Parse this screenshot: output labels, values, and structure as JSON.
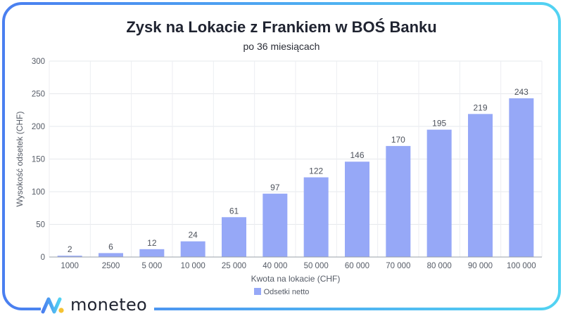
{
  "colors": {
    "bar": "#96a8f7",
    "frame_start": "#4a7ff0",
    "frame_end": "#52d3f2"
  },
  "brand": {
    "name": "moneteo",
    "logo": "moneteo-logo-icon"
  },
  "chart_data": {
    "type": "bar",
    "title": "Zysk na Lokacie z Frankiem w BOŚ Banku",
    "subtitle": "po 36 miesiącach",
    "xlabel": "Kwota na lokacie (CHF)",
    "ylabel": "Wysokość odsetek (CHF)",
    "ylim": [
      0,
      300
    ],
    "yticks": [
      0,
      50,
      100,
      150,
      200,
      250,
      300
    ],
    "grid": true,
    "legend_position": "bottom",
    "categories": [
      "1000",
      "2500",
      "5 000",
      "10 000",
      "25 000",
      "40 000",
      "50 000",
      "60 000",
      "70 000",
      "80 000",
      "90 000",
      "100 000"
    ],
    "series": [
      {
        "name": "Odsetki netto",
        "values": [
          2,
          6,
          12,
          24,
          61,
          97,
          122,
          146,
          170,
          195,
          219,
          243
        ]
      }
    ]
  }
}
